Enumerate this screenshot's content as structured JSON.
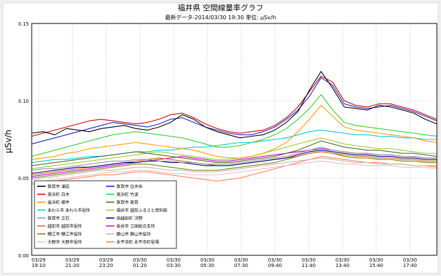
{
  "chart_data": {
    "type": "line",
    "title": "福井県 空間線量率グラフ",
    "subtitle": "最新データ-2014/03/30 19:30   単位: μSv/h",
    "ylabel": "μSv/h",
    "xlabel": "",
    "ylim": [
      0.0,
      0.15
    ],
    "y_ticks": [
      "0.15",
      "0.10",
      "0.05",
      "0.00"
    ],
    "x_ticks": [
      {
        "date": "03/29",
        "time": "19:10"
      },
      {
        "date": "03/29",
        "time": "21:20"
      },
      {
        "date": "03/29",
        "time": "23:20"
      },
      {
        "date": "03/30",
        "time": "01:20"
      },
      {
        "date": "03/30",
        "time": "03:30"
      },
      {
        "date": "03/30",
        "time": "05:30"
      },
      {
        "date": "03/30",
        "time": "07:30"
      },
      {
        "date": "03/30",
        "time": "09:40"
      },
      {
        "date": "03/30",
        "time": "11:40"
      },
      {
        "date": "03/30",
        "time": "13:40"
      },
      {
        "date": "03/30",
        "time": "15:40"
      },
      {
        "date": "03/30",
        "time": "17:40"
      }
    ],
    "grid": true,
    "legend_position": "bottom-left",
    "series": [
      {
        "name": "敦賀市  浦底",
        "color": "#000000",
        "values": [
          0.079,
          0.08,
          0.078,
          0.082,
          0.081,
          0.08,
          0.082,
          0.083,
          0.084,
          0.082,
          0.081,
          0.083,
          0.086,
          0.091,
          0.088,
          0.083,
          0.08,
          0.078,
          0.076,
          0.077,
          0.078,
          0.081,
          0.086,
          0.093,
          0.107,
          0.119,
          0.108,
          0.096,
          0.095,
          0.094,
          0.097,
          0.096,
          0.094,
          0.092,
          0.088,
          0.085
        ]
      },
      {
        "name": "敦賀市  白木峠",
        "color": "#1f1fbf",
        "values": [
          0.072,
          0.074,
          0.076,
          0.078,
          0.08,
          0.082,
          0.084,
          0.086,
          0.085,
          0.084,
          0.083,
          0.085,
          0.088,
          0.089,
          0.086,
          0.083,
          0.081,
          0.079,
          0.078,
          0.078,
          0.08,
          0.083,
          0.088,
          0.094,
          0.103,
          0.115,
          0.11,
          0.098,
          0.096,
          0.095,
          0.096,
          0.097,
          0.095,
          0.093,
          0.09,
          0.087
        ]
      },
      {
        "name": "美浜町  白木",
        "color": "#cc0000",
        "values": [
          0.077,
          0.079,
          0.081,
          0.083,
          0.085,
          0.087,
          0.088,
          0.087,
          0.086,
          0.085,
          0.086,
          0.088,
          0.091,
          0.092,
          0.089,
          0.085,
          0.082,
          0.08,
          0.079,
          0.08,
          0.081,
          0.084,
          0.089,
          0.096,
          0.106,
          0.116,
          0.112,
          0.1,
          0.097,
          0.096,
          0.098,
          0.098,
          0.096,
          0.094,
          0.091,
          0.088
        ]
      },
      {
        "name": "美浜町  竹波",
        "color": "#33cc33",
        "values": [
          0.064,
          0.066,
          0.068,
          0.07,
          0.072,
          0.074,
          0.076,
          0.078,
          0.079,
          0.08,
          0.079,
          0.078,
          0.077,
          0.076,
          0.074,
          0.072,
          0.07,
          0.07,
          0.071,
          0.073,
          0.075,
          0.078,
          0.082,
          0.088,
          0.095,
          0.104,
          0.094,
          0.086,
          0.084,
          0.083,
          0.082,
          0.081,
          0.08,
          0.079,
          0.078,
          0.077
        ]
      },
      {
        "name": "美浜町  郷市",
        "color": "#ff9900",
        "values": [
          0.062,
          0.063,
          0.064,
          0.066,
          0.067,
          0.069,
          0.07,
          0.071,
          0.072,
          0.073,
          0.072,
          0.071,
          0.07,
          0.069,
          0.068,
          0.066,
          0.064,
          0.063,
          0.063,
          0.064,
          0.066,
          0.069,
          0.073,
          0.08,
          0.088,
          0.097,
          0.09,
          0.083,
          0.081,
          0.08,
          0.079,
          0.078,
          0.077,
          0.076,
          0.074,
          0.073
        ]
      },
      {
        "name": "敦賀市  敦賀",
        "color": "#556b2f",
        "values": [
          0.058,
          0.059,
          0.06,
          0.061,
          0.062,
          0.063,
          0.064,
          0.065,
          0.066,
          0.067,
          0.066,
          0.065,
          0.064,
          0.063,
          0.062,
          0.061,
          0.06,
          0.06,
          0.061,
          0.062,
          0.063,
          0.064,
          0.066,
          0.068,
          0.071,
          0.074,
          0.072,
          0.07,
          0.069,
          0.068,
          0.068,
          0.067,
          0.066,
          0.066,
          0.065,
          0.064
        ]
      },
      {
        "name": "あわら市  あわら市役所",
        "color": "#00cccc",
        "values": [
          0.06,
          0.061,
          0.062,
          0.062,
          0.063,
          0.064,
          0.064,
          0.065,
          0.066,
          0.067,
          0.067,
          0.068,
          0.068,
          0.069,
          0.07,
          0.07,
          0.071,
          0.072,
          0.073,
          0.073,
          0.074,
          0.075,
          0.076,
          0.078,
          0.08,
          0.081,
          0.08,
          0.079,
          0.078,
          0.078,
          0.077,
          0.077,
          0.076,
          0.076,
          0.075,
          0.075
        ]
      },
      {
        "name": "福井市  越前ふるさと資料館",
        "color": "#9acd32",
        "values": [
          0.056,
          0.057,
          0.058,
          0.059,
          0.06,
          0.061,
          0.062,
          0.063,
          0.064,
          0.065,
          0.066,
          0.067,
          0.066,
          0.065,
          0.064,
          0.063,
          0.062,
          0.062,
          0.063,
          0.064,
          0.066,
          0.068,
          0.07,
          0.072,
          0.074,
          0.076,
          0.074,
          0.072,
          0.071,
          0.07,
          0.069,
          0.069,
          0.068,
          0.067,
          0.066,
          0.066
        ]
      },
      {
        "name": "敦賀市  立石",
        "color": "#999999",
        "values": [
          0.055,
          0.056,
          0.056,
          0.057,
          0.058,
          0.059,
          0.06,
          0.061,
          0.061,
          0.062,
          0.062,
          0.061,
          0.061,
          0.06,
          0.06,
          0.059,
          0.059,
          0.059,
          0.06,
          0.061,
          0.062,
          0.063,
          0.064,
          0.066,
          0.068,
          0.07,
          0.068,
          0.067,
          0.066,
          0.066,
          0.065,
          0.065,
          0.064,
          0.064,
          0.063,
          0.063
        ]
      },
      {
        "name": "南越前町  河野",
        "color": "#000080",
        "values": [
          0.053,
          0.054,
          0.055,
          0.056,
          0.057,
          0.057,
          0.058,
          0.059,
          0.06,
          0.06,
          0.061,
          0.061,
          0.06,
          0.06,
          0.059,
          0.058,
          0.058,
          0.058,
          0.059,
          0.06,
          0.061,
          0.062,
          0.063,
          0.065,
          0.067,
          0.068,
          0.067,
          0.066,
          0.065,
          0.065,
          0.064,
          0.064,
          0.063,
          0.063,
          0.062,
          0.062
        ]
      },
      {
        "name": "越前市  越前市役所",
        "color": "#d2691e",
        "values": [
          0.052,
          0.053,
          0.054,
          0.055,
          0.056,
          0.057,
          0.058,
          0.059,
          0.06,
          0.061,
          0.062,
          0.063,
          0.062,
          0.061,
          0.06,
          0.059,
          0.058,
          0.058,
          0.059,
          0.06,
          0.061,
          0.062,
          0.063,
          0.064,
          0.066,
          0.067,
          0.066,
          0.065,
          0.064,
          0.064,
          0.063,
          0.063,
          0.062,
          0.062,
          0.061,
          0.061
        ]
      },
      {
        "name": "坂井市  三国総合支所",
        "color": "#cc00cc",
        "values": [
          0.051,
          0.052,
          0.053,
          0.054,
          0.055,
          0.056,
          0.057,
          0.058,
          0.059,
          0.06,
          0.061,
          0.062,
          0.063,
          0.064,
          0.063,
          0.062,
          0.061,
          0.061,
          0.062,
          0.063,
          0.064,
          0.065,
          0.066,
          0.067,
          0.068,
          0.069,
          0.068,
          0.067,
          0.066,
          0.066,
          0.065,
          0.065,
          0.064,
          0.064,
          0.063,
          0.063
        ]
      },
      {
        "name": "鯖江市  鯖江市役所",
        "color": "#808000",
        "values": [
          0.05,
          0.051,
          0.052,
          0.053,
          0.054,
          0.055,
          0.056,
          0.057,
          0.058,
          0.059,
          0.059,
          0.058,
          0.057,
          0.056,
          0.055,
          0.055,
          0.055,
          0.056,
          0.057,
          0.058,
          0.059,
          0.06,
          0.062,
          0.064,
          0.066,
          0.067,
          0.066,
          0.064,
          0.063,
          0.063,
          0.062,
          0.062,
          0.061,
          0.061,
          0.06,
          0.06
        ]
      },
      {
        "name": "勝山市  勝山市役所",
        "color": "#bbbbbb",
        "values": [
          0.049,
          0.05,
          0.051,
          0.052,
          0.053,
          0.054,
          0.055,
          0.055,
          0.056,
          0.057,
          0.057,
          0.056,
          0.055,
          0.055,
          0.054,
          0.054,
          0.054,
          0.055,
          0.056,
          0.057,
          0.058,
          0.059,
          0.06,
          0.061,
          0.062,
          0.063,
          0.062,
          0.061,
          0.06,
          0.06,
          0.059,
          0.059,
          0.059,
          0.058,
          0.058,
          0.058
        ]
      },
      {
        "name": "大野市  大野市役所",
        "color": "#ffb6c1",
        "values": [
          0.047,
          0.048,
          0.049,
          0.05,
          0.051,
          0.052,
          0.053,
          0.054,
          0.054,
          0.055,
          0.055,
          0.054,
          0.053,
          0.053,
          0.052,
          0.052,
          0.052,
          0.053,
          0.054,
          0.055,
          0.056,
          0.057,
          0.058,
          0.059,
          0.06,
          0.061,
          0.06,
          0.059,
          0.059,
          0.058,
          0.058,
          0.058,
          0.057,
          0.057,
          0.057,
          0.056
        ]
      },
      {
        "name": "永平寺町  永平寺町役場",
        "color": "#ff7f50",
        "values": [
          0.046,
          0.047,
          0.048,
          0.049,
          0.05,
          0.051,
          0.052,
          0.052,
          0.053,
          0.054,
          0.054,
          0.053,
          0.052,
          0.051,
          0.05,
          0.049,
          0.048,
          0.049,
          0.05,
          0.052,
          0.054,
          0.056,
          0.058,
          0.06,
          0.062,
          0.064,
          0.063,
          0.062,
          0.061,
          0.06,
          0.06,
          0.059,
          0.059,
          0.058,
          0.058,
          0.057
        ]
      }
    ]
  }
}
